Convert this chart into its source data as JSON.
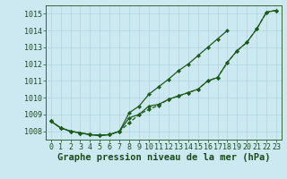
{
  "title": "Graphe pression niveau de la mer (hPa)",
  "hours": [
    0,
    1,
    2,
    3,
    4,
    5,
    6,
    7,
    8,
    9,
    10,
    11,
    12,
    13,
    14,
    15,
    16,
    17,
    18,
    19,
    20,
    21,
    22,
    23
  ],
  "line1_y": [
    1008.6,
    1008.2,
    1008.0,
    1007.9,
    1007.8,
    1007.75,
    1007.8,
    1008.0,
    1008.5,
    1009.0,
    1009.3,
    1009.55,
    1009.9,
    1010.1,
    1010.3,
    1010.5,
    1011.0,
    1011.2,
    1012.1,
    1012.8,
    1013.3,
    1014.1,
    1015.1,
    1015.2
  ],
  "line2_y": [
    1008.6,
    1008.2,
    1008.0,
    1007.9,
    1007.8,
    1007.75,
    1007.8,
    1008.0,
    1009.1,
    1009.5,
    1010.2,
    1010.65,
    1011.1,
    1011.6,
    1012.0,
    1012.5,
    1013.0,
    1013.5,
    1014.0,
    null,
    null,
    null,
    null,
    null
  ],
  "line3_y": [
    1008.6,
    1008.2,
    1008.0,
    1007.9,
    1007.8,
    1007.75,
    1007.8,
    1008.0,
    1008.8,
    1009.0,
    1009.5,
    1009.6,
    1009.9,
    1010.1,
    1010.3,
    1010.5,
    1011.0,
    1011.2,
    1012.1,
    1012.8,
    1013.3,
    1014.1,
    1015.1,
    1015.2
  ],
  "ylim": [
    1007.5,
    1015.5
  ],
  "yticks": [
    1008,
    1009,
    1010,
    1011,
    1012,
    1013,
    1014,
    1015
  ],
  "line_color": "#1a5c1a",
  "bg_color": "#cce8f0",
  "grid_color": "#b0d4dc",
  "axis_color": "#336633",
  "text_color": "#1a4d1a",
  "title_fontsize": 7.5,
  "tick_fontsize": 6.0,
  "line_width": 0.9,
  "marker_size": 2.2
}
